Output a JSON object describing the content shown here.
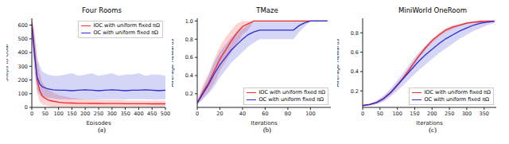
{
  "chart_data": [
    {
      "type": "line",
      "title": "Four Rooms",
      "caption": "(a)",
      "x_label": "Episodes",
      "y_label": "Steps to Goal",
      "legend": "upper right",
      "x": [
        0,
        10,
        20,
        30,
        40,
        60,
        80,
        100,
        125,
        150,
        175,
        200,
        225,
        250,
        275,
        300,
        325,
        350,
        375,
        400,
        425,
        450,
        475,
        500
      ],
      "xlim": [
        0,
        500
      ],
      "xticks": [
        0,
        50,
        100,
        150,
        200,
        250,
        300,
        350,
        400,
        450,
        500
      ],
      "ylim": [
        0,
        650
      ],
      "yticks": [
        0,
        100,
        200,
        300,
        400,
        500,
        600
      ],
      "series": [
        {
          "name": "IOC with uniform fixed πΩ",
          "color": "#ee2a2a",
          "values": [
            620,
            420,
            200,
            120,
            80,
            55,
            45,
            38,
            33,
            32,
            30,
            30,
            29,
            29,
            28,
            28,
            28,
            27,
            27,
            27,
            27,
            26,
            26,
            26
          ],
          "lower": [
            560,
            300,
            100,
            40,
            20,
            10,
            5,
            5,
            5,
            5,
            5,
            5,
            5,
            5,
            5,
            5,
            5,
            5,
            5,
            5,
            5,
            5,
            5,
            5
          ],
          "upper": [
            650,
            560,
            350,
            250,
            180,
            130,
            110,
            90,
            80,
            70,
            65,
            60,
            60,
            55,
            55,
            55,
            55,
            50,
            50,
            50,
            50,
            50,
            50,
            50
          ]
        },
        {
          "name": "OC with uniform fixed πΩ",
          "color": "#2b2bd6",
          "values": [
            600,
            380,
            220,
            170,
            150,
            135,
            128,
            125,
            125,
            122,
            125,
            128,
            125,
            122,
            125,
            128,
            125,
            122,
            125,
            125,
            128,
            125,
            122,
            125
          ],
          "lower": [
            540,
            250,
            120,
            90,
            80,
            70,
            65,
            60,
            60,
            58,
            60,
            60,
            58,
            58,
            60,
            60,
            60,
            58,
            60,
            60,
            60,
            58,
            58,
            60
          ],
          "upper": [
            650,
            520,
            360,
            300,
            260,
            240,
            230,
            230,
            240,
            250,
            230,
            240,
            250,
            230,
            240,
            250,
            230,
            240,
            240,
            250,
            230,
            240,
            240,
            230
          ]
        }
      ]
    },
    {
      "type": "line",
      "title": "TMaze",
      "caption": "(b)",
      "x_label": "Iterations",
      "y_label": "Average Rewards",
      "legend": "lower right",
      "x": [
        0,
        5,
        10,
        15,
        20,
        25,
        30,
        35,
        40,
        45,
        50,
        55,
        60,
        65,
        70,
        75,
        80,
        85,
        90,
        95,
        100,
        105,
        110,
        115
      ],
      "xlim": [
        0,
        118
      ],
      "xticks": [
        0,
        20,
        40,
        60,
        80,
        100
      ],
      "ylim": [
        0.05,
        1.03
      ],
      "yticks": [
        0.2,
        0.4,
        0.6,
        0.8,
        {
          "value": 1,
          "label": "1.0"
        }
      ],
      "series": [
        {
          "name": "IOC with uniform fixed πΩ",
          "color": "#ee2a2a",
          "values": [
            0.1,
            0.22,
            0.32,
            0.45,
            0.58,
            0.68,
            0.78,
            0.87,
            0.94,
            0.97,
            1,
            1,
            1,
            1,
            1,
            1,
            1,
            1,
            1,
            1,
            1,
            1,
            1,
            1
          ],
          "lower": [
            0.08,
            0.15,
            0.22,
            0.32,
            0.45,
            0.55,
            0.65,
            0.75,
            0.85,
            0.9,
            1,
            1,
            1,
            1,
            1,
            1,
            1,
            1,
            1,
            1,
            1,
            1,
            1,
            1
          ],
          "upper": [
            0.12,
            0.3,
            0.42,
            0.58,
            0.72,
            0.82,
            0.9,
            0.97,
            1,
            1,
            1,
            1,
            1,
            1,
            1,
            1,
            1,
            1,
            1,
            1,
            1,
            1,
            1,
            1
          ]
        },
        {
          "name": "OC with uniform fixed πΩ",
          "color": "#2b2bd6",
          "values": [
            0.1,
            0.2,
            0.3,
            0.42,
            0.52,
            0.6,
            0.68,
            0.74,
            0.8,
            0.85,
            0.88,
            0.9,
            0.9,
            0.9,
            0.9,
            0.9,
            0.9,
            0.9,
            0.95,
            0.98,
            1,
            1,
            1,
            1
          ],
          "lower": [
            0.08,
            0.14,
            0.2,
            0.28,
            0.38,
            0.46,
            0.54,
            0.6,
            0.66,
            0.72,
            0.76,
            0.8,
            0.8,
            0.8,
            0.8,
            0.8,
            0.8,
            0.8,
            0.88,
            0.94,
            1,
            1,
            1,
            1
          ],
          "upper": [
            0.12,
            0.26,
            0.4,
            0.55,
            0.66,
            0.74,
            0.82,
            0.88,
            0.92,
            0.96,
            1,
            1,
            1,
            1,
            1,
            1,
            1,
            1,
            1,
            1,
            1,
            1,
            1,
            1
          ]
        }
      ]
    },
    {
      "type": "line",
      "title": "MiniWorld OneRoom",
      "caption": "(c)",
      "x_label": "Iterations",
      "y_label": "Average Rewards",
      "legend": "lower right",
      "x": [
        0,
        20,
        40,
        60,
        80,
        100,
        120,
        140,
        160,
        180,
        200,
        220,
        240,
        260,
        280,
        300,
        320,
        340,
        360,
        380
      ],
      "xlim": [
        0,
        385
      ],
      "xticks": [
        0,
        50,
        100,
        150,
        200,
        250,
        300,
        350
      ],
      "ylim": [
        0.03,
        0.95
      ],
      "yticks": [
        0.2,
        0.4,
        0.6,
        0.8
      ],
      "series": [
        {
          "name": "IOC with uniform fixed πΩ",
          "color": "#ee2a2a",
          "values": [
            0.05,
            0.06,
            0.08,
            0.12,
            0.18,
            0.26,
            0.35,
            0.45,
            0.55,
            0.64,
            0.72,
            0.78,
            0.83,
            0.86,
            0.88,
            0.9,
            0.91,
            0.915,
            0.92,
            0.92
          ],
          "lower": [
            0.04,
            0.05,
            0.07,
            0.1,
            0.16,
            0.24,
            0.33,
            0.43,
            0.53,
            0.62,
            0.7,
            0.76,
            0.81,
            0.84,
            0.87,
            0.89,
            0.9,
            0.905,
            0.91,
            0.91
          ],
          "upper": [
            0.06,
            0.07,
            0.09,
            0.14,
            0.2,
            0.28,
            0.37,
            0.47,
            0.57,
            0.66,
            0.74,
            0.8,
            0.85,
            0.88,
            0.89,
            0.91,
            0.92,
            0.925,
            0.93,
            0.93
          ]
        },
        {
          "name": "OC with uniform fixed πΩ",
          "color": "#2b2bd6",
          "values": [
            0.05,
            0.06,
            0.08,
            0.12,
            0.18,
            0.26,
            0.34,
            0.42,
            0.5,
            0.57,
            0.63,
            0.69,
            0.74,
            0.78,
            0.82,
            0.85,
            0.88,
            0.9,
            0.91,
            0.92
          ],
          "lower": [
            0.04,
            0.05,
            0.06,
            0.09,
            0.14,
            0.2,
            0.27,
            0.34,
            0.41,
            0.47,
            0.53,
            0.59,
            0.64,
            0.69,
            0.74,
            0.78,
            0.82,
            0.85,
            0.88,
            0.9
          ],
          "upper": [
            0.06,
            0.07,
            0.1,
            0.15,
            0.22,
            0.31,
            0.4,
            0.5,
            0.59,
            0.66,
            0.72,
            0.78,
            0.82,
            0.86,
            0.89,
            0.91,
            0.92,
            0.93,
            0.93,
            0.93
          ]
        }
      ]
    }
  ]
}
